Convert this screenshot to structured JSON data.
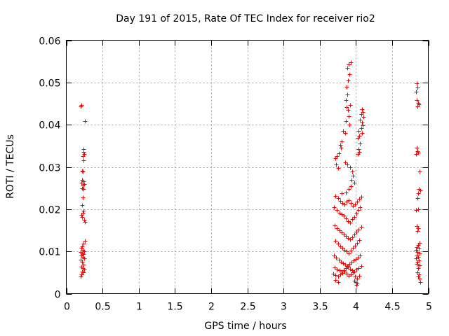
{
  "chart_data": {
    "type": "scatter",
    "title": "Day 191 of 2015, Rate Of TEC Index for receiver rio2",
    "xlabel": "GPS time / hours",
    "ylabel": "ROTI / TECUs",
    "xlim": [
      0,
      5
    ],
    "ylim": [
      0,
      0.06
    ],
    "grid": true,
    "marker": "+",
    "marker_color": "#ff0000",
    "xticks": [
      "0",
      "0.5",
      "1",
      "1.5",
      "2",
      "2.5",
      "3",
      "3.5",
      "4",
      "4.5",
      "5"
    ],
    "xtick_values": [
      0,
      0.5,
      1,
      1.5,
      2,
      2.5,
      3,
      3.5,
      4,
      4.5,
      5
    ],
    "yticks": [
      "0",
      "0.01",
      "0.02",
      "0.03",
      "0.04",
      "0.05",
      "0.06"
    ],
    "ytick_values": [
      0,
      0.01,
      0.02,
      0.03,
      0.04,
      0.05,
      0.06
    ],
    "series": [
      {
        "name": "ROTI",
        "points": [
          [
            0.2,
            0.0443
          ],
          [
            0.21,
            0.0446
          ],
          [
            0.26,
            0.0408
          ],
          [
            0.24,
            0.0342
          ],
          [
            0.24,
            0.0335
          ],
          [
            0.25,
            0.033
          ],
          [
            0.23,
            0.0325
          ],
          [
            0.24,
            0.0316
          ],
          [
            0.22,
            0.0291
          ],
          [
            0.23,
            0.0289
          ],
          [
            0.22,
            0.027
          ],
          [
            0.24,
            0.0266
          ],
          [
            0.21,
            0.0263
          ],
          [
            0.25,
            0.026
          ],
          [
            0.23,
            0.0256
          ],
          [
            0.22,
            0.025
          ],
          [
            0.24,
            0.0247
          ],
          [
            0.23,
            0.0228
          ],
          [
            0.22,
            0.021
          ],
          [
            0.24,
            0.0196
          ],
          [
            0.23,
            0.0192
          ],
          [
            0.21,
            0.0187
          ],
          [
            0.22,
            0.0182
          ],
          [
            0.25,
            0.0175
          ],
          [
            0.26,
            0.017
          ],
          [
            0.26,
            0.0125
          ],
          [
            0.24,
            0.0118
          ],
          [
            0.22,
            0.0112
          ],
          [
            0.21,
            0.0108
          ],
          [
            0.23,
            0.0104
          ],
          [
            0.25,
            0.0101
          ],
          [
            0.2,
            0.0099
          ],
          [
            0.22,
            0.0096
          ],
          [
            0.24,
            0.0093
          ],
          [
            0.21,
            0.009
          ],
          [
            0.23,
            0.0087
          ],
          [
            0.25,
            0.0084
          ],
          [
            0.2,
            0.008
          ],
          [
            0.22,
            0.0075
          ],
          [
            0.24,
            0.0068
          ],
          [
            0.21,
            0.0064
          ],
          [
            0.23,
            0.006
          ],
          [
            0.25,
            0.0057
          ],
          [
            0.22,
            0.0053
          ],
          [
            0.24,
            0.005
          ],
          [
            0.21,
            0.0046
          ],
          [
            0.2,
            0.004
          ],
          [
            3.93,
            0.0548
          ],
          [
            3.9,
            0.0542
          ],
          [
            3.88,
            0.0535
          ],
          [
            3.91,
            0.052
          ],
          [
            3.89,
            0.0505
          ],
          [
            3.87,
            0.049
          ],
          [
            3.88,
            0.0472
          ],
          [
            3.86,
            0.0458
          ],
          [
            3.92,
            0.0446
          ],
          [
            3.87,
            0.0442
          ],
          [
            3.89,
            0.0435
          ],
          [
            3.9,
            0.042
          ],
          [
            3.86,
            0.0408
          ],
          [
            3.91,
            0.04
          ],
          [
            4.08,
            0.0436
          ],
          [
            4.09,
            0.043
          ],
          [
            4.07,
            0.0425
          ],
          [
            4.1,
            0.0418
          ],
          [
            4.06,
            0.0412
          ],
          [
            4.08,
            0.0405
          ],
          [
            4.09,
            0.0398
          ],
          [
            4.07,
            0.0392
          ],
          [
            4.04,
            0.0385
          ],
          [
            4.08,
            0.038
          ],
          [
            4.05,
            0.0374
          ],
          [
            4.03,
            0.0368
          ],
          [
            4.06,
            0.0355
          ],
          [
            4.04,
            0.0342
          ],
          [
            4.05,
            0.0336
          ],
          [
            4.03,
            0.033
          ],
          [
            3.82,
            0.0385
          ],
          [
            3.85,
            0.038
          ],
          [
            3.8,
            0.036
          ],
          [
            3.78,
            0.0352
          ],
          [
            3.79,
            0.0345
          ],
          [
            3.76,
            0.0332
          ],
          [
            3.74,
            0.0326
          ],
          [
            3.72,
            0.032
          ],
          [
            3.73,
            0.0305
          ],
          [
            3.75,
            0.0298
          ],
          [
            3.85,
            0.031
          ],
          [
            3.88,
            0.0305
          ],
          [
            3.92,
            0.03
          ],
          [
            3.95,
            0.029
          ],
          [
            3.96,
            0.028
          ],
          [
            3.94,
            0.027
          ],
          [
            3.98,
            0.0262
          ],
          [
            3.93,
            0.0255
          ],
          [
            3.9,
            0.0248
          ],
          [
            3.86,
            0.024
          ],
          [
            3.8,
            0.0238
          ],
          [
            3.72,
            0.0232
          ],
          [
            3.75,
            0.0226
          ],
          [
            3.78,
            0.022
          ],
          [
            3.81,
            0.0215
          ],
          [
            3.84,
            0.0212
          ],
          [
            3.87,
            0.0218
          ],
          [
            3.9,
            0.0222
          ],
          [
            3.93,
            0.0214
          ],
          [
            3.96,
            0.0208
          ],
          [
            3.99,
            0.0212
          ],
          [
            4.02,
            0.0218
          ],
          [
            4.05,
            0.0224
          ],
          [
            4.07,
            0.023
          ],
          [
            3.7,
            0.0205
          ],
          [
            3.74,
            0.0198
          ],
          [
            3.77,
            0.0192
          ],
          [
            3.8,
            0.0188
          ],
          [
            3.83,
            0.0184
          ],
          [
            3.86,
            0.0178
          ],
          [
            3.89,
            0.0172
          ],
          [
            3.92,
            0.0168
          ],
          [
            3.95,
            0.0176
          ],
          [
            3.98,
            0.0182
          ],
          [
            4.01,
            0.019
          ],
          [
            4.04,
            0.0198
          ],
          [
            4.06,
            0.0205
          ],
          [
            3.71,
            0.0162
          ],
          [
            3.74,
            0.0155
          ],
          [
            3.77,
            0.015
          ],
          [
            3.8,
            0.0145
          ],
          [
            3.83,
            0.014
          ],
          [
            3.86,
            0.0136
          ],
          [
            3.89,
            0.0132
          ],
          [
            3.92,
            0.0128
          ],
          [
            3.95,
            0.0134
          ],
          [
            3.98,
            0.014
          ],
          [
            4.01,
            0.0146
          ],
          [
            4.04,
            0.0152
          ],
          [
            4.07,
            0.0158
          ],
          [
            3.72,
            0.0125
          ],
          [
            3.75,
            0.0118
          ],
          [
            3.78,
            0.0112
          ],
          [
            3.81,
            0.0108
          ],
          [
            3.84,
            0.0104
          ],
          [
            3.87,
            0.01
          ],
          [
            3.9,
            0.0096
          ],
          [
            3.93,
            0.0102
          ],
          [
            3.96,
            0.0108
          ],
          [
            3.99,
            0.0114
          ],
          [
            4.02,
            0.012
          ],
          [
            4.05,
            0.0126
          ],
          [
            3.7,
            0.009
          ],
          [
            3.73,
            0.0085
          ],
          [
            3.76,
            0.008
          ],
          [
            3.79,
            0.0076
          ],
          [
            3.82,
            0.0072
          ],
          [
            3.85,
            0.0069
          ],
          [
            3.88,
            0.0066
          ],
          [
            3.91,
            0.007
          ],
          [
            3.94,
            0.0074
          ],
          [
            3.97,
            0.0078
          ],
          [
            4.0,
            0.0082
          ],
          [
            4.03,
            0.0086
          ],
          [
            4.06,
            0.009
          ],
          [
            3.71,
            0.0062
          ],
          [
            3.74,
            0.0058
          ],
          [
            3.77,
            0.0055
          ],
          [
            3.8,
            0.0052
          ],
          [
            3.83,
            0.0056
          ],
          [
            3.86,
            0.006
          ],
          [
            3.89,
            0.0063
          ],
          [
            3.92,
            0.0059
          ],
          [
            3.95,
            0.0056
          ],
          [
            3.98,
            0.0053
          ],
          [
            4.01,
            0.0057
          ],
          [
            4.04,
            0.0061
          ],
          [
            4.07,
            0.0065
          ],
          [
            3.69,
            0.0048
          ],
          [
            3.72,
            0.0044
          ],
          [
            3.75,
            0.0041
          ],
          [
            3.78,
            0.0045
          ],
          [
            3.81,
            0.0049
          ],
          [
            3.84,
            0.0052
          ],
          [
            3.87,
            0.0047
          ],
          [
            3.9,
            0.0043
          ],
          [
            3.93,
            0.0046
          ],
          [
            3.96,
            0.005
          ],
          [
            3.99,
            0.004
          ],
          [
            4.02,
            0.0036
          ],
          [
            4.05,
            0.0042
          ],
          [
            3.98,
            0.003
          ],
          [
            4.0,
            0.0027
          ],
          [
            4.02,
            0.0024
          ],
          [
            4.01,
            0.0021
          ],
          [
            3.72,
            0.0032
          ],
          [
            3.75,
            0.0028
          ],
          [
            4.84,
            0.0498
          ],
          [
            4.85,
            0.0488
          ],
          [
            4.83,
            0.0478
          ],
          [
            4.84,
            0.0458
          ],
          [
            4.86,
            0.0452
          ],
          [
            4.87,
            0.0448
          ],
          [
            4.85,
            0.0443
          ],
          [
            4.84,
            0.0345
          ],
          [
            4.85,
            0.0338
          ],
          [
            4.86,
            0.0334
          ],
          [
            4.83,
            0.033
          ],
          [
            4.88,
            0.029
          ],
          [
            4.87,
            0.0248
          ],
          [
            4.89,
            0.0245
          ],
          [
            4.86,
            0.0238
          ],
          [
            4.85,
            0.0226
          ],
          [
            4.86,
            0.02
          ],
          [
            4.83,
            0.0198
          ],
          [
            4.84,
            0.016
          ],
          [
            4.86,
            0.0155
          ],
          [
            4.85,
            0.0148
          ],
          [
            4.88,
            0.012
          ],
          [
            4.86,
            0.0115
          ],
          [
            4.84,
            0.0111
          ],
          [
            4.87,
            0.0107
          ],
          [
            4.83,
            0.0103
          ],
          [
            4.85,
            0.0099
          ],
          [
            4.88,
            0.0095
          ],
          [
            4.84,
            0.0091
          ],
          [
            4.86,
            0.0087
          ],
          [
            4.83,
            0.0083
          ],
          [
            4.87,
            0.0079
          ],
          [
            4.85,
            0.0075
          ],
          [
            4.84,
            0.0071
          ],
          [
            4.88,
            0.0067
          ],
          [
            4.86,
            0.006
          ],
          [
            4.85,
            0.005
          ],
          [
            4.87,
            0.0045
          ],
          [
            4.86,
            0.004
          ],
          [
            4.88,
            0.0035
          ],
          [
            4.89,
            0.0028
          ]
        ]
      }
    ]
  }
}
